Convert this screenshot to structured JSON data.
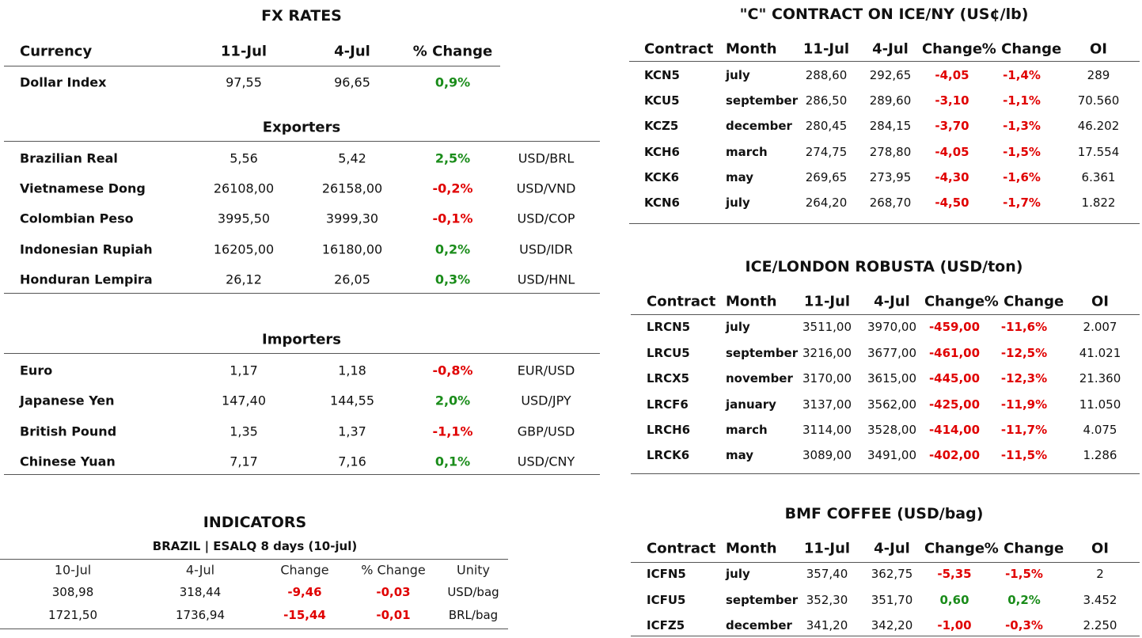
{
  "fx_rates": {
    "title": "FX RATES",
    "headers": [
      "Currency",
      "11-Jul",
      "4-Jul",
      "% Change"
    ],
    "rows": [
      [
        "Dollar Index",
        "97,55",
        "96,65",
        "0,9%"
      ]
    ]
  },
  "exporters": {
    "title": "Exporters",
    "rows": [
      [
        "Brazilian Real",
        "5,56",
        "5,42",
        "2,5%",
        "USD/BRL"
      ],
      [
        "Vietnamese Dong",
        "26108,00",
        "26158,00",
        "-0,2%",
        "USD/VND"
      ],
      [
        "Colombian Peso",
        "3995,50",
        "3999,30",
        "-0,1%",
        "USD/COP"
      ],
      [
        "Indonesian Rupiah",
        "16205,00",
        "16180,00",
        "0,2%",
        "USD/IDR"
      ],
      [
        "Honduran Lempira",
        "26,12",
        "26,05",
        "0,3%",
        "USD/HNL"
      ]
    ]
  },
  "importers": {
    "title": "Importers",
    "rows": [
      [
        "Euro",
        "1,17",
        "1,18",
        "-0,8%",
        "EUR/USD"
      ],
      [
        "Japanese Yen",
        "147,40",
        "144,55",
        "2,0%",
        "USD/JPY"
      ],
      [
        "British Pound",
        "1,35",
        "1,37",
        "-1,1%",
        "GBP/USD"
      ],
      [
        "Chinese Yuan",
        "7,17",
        "7,16",
        "0,1%",
        "USD/CNY"
      ]
    ]
  },
  "indicators": {
    "title": "INDICATORS",
    "subtitle": "BRAZIL | ESALQ 8 days (10-jul)",
    "headers": [
      "10-Jul",
      "4-Jul",
      "Change",
      "% Change",
      "Unity"
    ],
    "rows": [
      [
        "308,98",
        "318,44",
        "-9,46",
        "-0,03",
        "USD/bag"
      ],
      [
        "1721,50",
        "1736,94",
        "-15,44",
        "-0,01",
        "BRL/bag"
      ]
    ]
  },
  "ice_ny": {
    "title": "\"C\" CONTRACT ON ICE/NY (US¢/lb)",
    "headers": [
      "Contract",
      "Month",
      "11-Jul",
      "4-Jul",
      "Change",
      "% Change",
      "OI"
    ],
    "rows": [
      [
        "KCN5",
        "july",
        "288,60",
        "292,65",
        "-4,05",
        "-1,4%",
        "289"
      ],
      [
        "KCU5",
        "september",
        "286,50",
        "289,60",
        "-3,10",
        "-1,1%",
        "70.560"
      ],
      [
        "KCZ5",
        "december",
        "280,45",
        "284,15",
        "-3,70",
        "-1,3%",
        "46.202"
      ],
      [
        "KCH6",
        "march",
        "274,75",
        "278,80",
        "-4,05",
        "-1,5%",
        "17.554"
      ],
      [
        "KCK6",
        "may",
        "269,65",
        "273,95",
        "-4,30",
        "-1,6%",
        "6.361"
      ],
      [
        "KCN6",
        "july",
        "264,20",
        "268,70",
        "-4,50",
        "-1,7%",
        "1.822"
      ]
    ]
  },
  "ice_london": {
    "title": "ICE/LONDON ROBUSTA (USD/ton)",
    "headers": [
      "Contract",
      "Month",
      "11-Jul",
      "4-Jul",
      "Change",
      "% Change",
      "OI"
    ],
    "rows": [
      [
        "LRCN5",
        "july",
        "3511,00",
        "3970,00",
        "-459,00",
        "-11,6%",
        "2.007"
      ],
      [
        "LRCU5",
        "september",
        "3216,00",
        "3677,00",
        "-461,00",
        "-12,5%",
        "41.021"
      ],
      [
        "LRCX5",
        "november",
        "3170,00",
        "3615,00",
        "-445,00",
        "-12,3%",
        "21.360"
      ],
      [
        "LRCF6",
        "january",
        "3137,00",
        "3562,00",
        "-425,00",
        "-11,9%",
        "11.050"
      ],
      [
        "LRCH6",
        "march",
        "3114,00",
        "3528,00",
        "-414,00",
        "-11,7%",
        "4.075"
      ],
      [
        "LRCK6",
        "may",
        "3089,00",
        "3491,00",
        "-402,00",
        "-11,5%",
        "1.286"
      ]
    ]
  },
  "bmf": {
    "title": "BMF COFFEE (USD/bag)",
    "headers": [
      "Contract",
      "Month",
      "11-Jul",
      "4-Jul",
      "Change",
      "% Change",
      "OI"
    ],
    "rows": [
      [
        "ICFN5",
        "july",
        "357,40",
        "362,75",
        "-5,35",
        "-1,5%",
        "2"
      ],
      [
        "ICFU5",
        "september",
        "352,30",
        "351,70",
        "0,60",
        "0,2%",
        "3.452"
      ],
      [
        "ICFZ5",
        "december",
        "341,20",
        "342,20",
        "-1,00",
        "-0,3%",
        "2.250"
      ]
    ]
  }
}
